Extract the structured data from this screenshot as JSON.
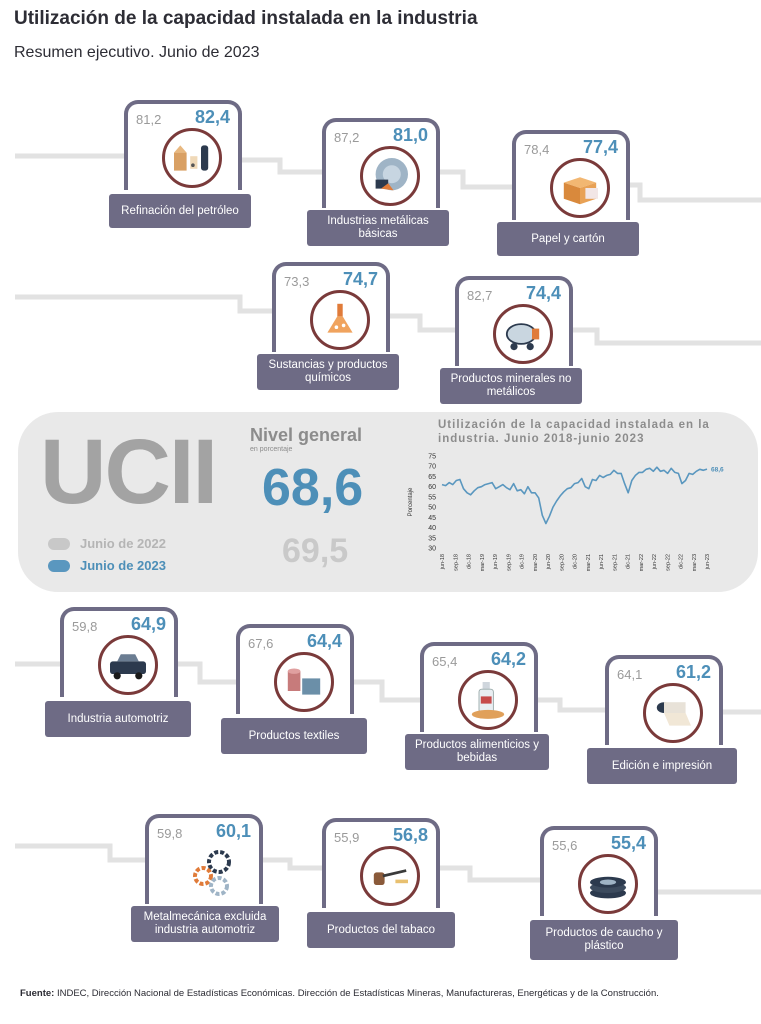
{
  "header": {
    "title": "Utilización de la capacidad instalada en la industria",
    "subtitle": "Resumen ejecutivo. Junio de 2023"
  },
  "colors": {
    "y2022": "#c8c8c8",
    "y2023": "#5a97bf",
    "card_border": "#6e6b85",
    "label_bg": "#6e6b85",
    "circle_border": "#7a3a3a"
  },
  "sectors": [
    {
      "name": "Refinación del petróleo",
      "v2022": "81,2",
      "v2023": "82,4",
      "icon": "refinery-icon"
    },
    {
      "name": "Industrias metálicas básicas",
      "v2022": "87,2",
      "v2023": "81,0",
      "icon": "metal-icon"
    },
    {
      "name": "Papel y cartón",
      "v2022": "78,4",
      "v2023": "77,4",
      "icon": "box-icon"
    },
    {
      "name": "Sustancias y productos químicos",
      "v2022": "73,3",
      "v2023": "74,7",
      "icon": "flask-icon"
    },
    {
      "name": "Productos minerales no metálicos",
      "v2022": "82,7",
      "v2023": "74,4",
      "icon": "cement-mixer-icon"
    },
    {
      "name": "Industria automotriz",
      "v2022": "59,8",
      "v2023": "64,9",
      "icon": "truck-icon"
    },
    {
      "name": "Productos textiles",
      "v2022": "67,6",
      "v2023": "64,4",
      "icon": "textile-icon"
    },
    {
      "name": "Productos alimenticios y bebidas",
      "v2022": "65,4",
      "v2023": "64,2",
      "icon": "food-icon"
    },
    {
      "name": "Edición e impresión",
      "v2022": "64,1",
      "v2023": "61,2",
      "icon": "paper-roll-icon"
    },
    {
      "name": "Metalmecánica excluida industria automotriz",
      "v2022": "59,8",
      "v2023": "60,1",
      "icon": "gears-icon"
    },
    {
      "name": "Productos del tabaco",
      "v2022": "55,9",
      "v2023": "56,8",
      "icon": "pipe-icon"
    },
    {
      "name": "Productos de caucho y plástico",
      "v2022": "55,6",
      "v2023": "55,4",
      "icon": "tire-icon"
    }
  ],
  "summary": {
    "ucii": "UCII",
    "nivel_general_title": "Nivel general",
    "nivel_general_unit": "en porcentaje",
    "value_2023": "68,6",
    "value_2022": "69,5",
    "legend_2022": "Junio de 2022",
    "legend_2023": "Junio de 2023"
  },
  "chart_data": {
    "type": "line",
    "title": "Utilización de la capacidad instalada en la industria. Junio 2018-junio 2023",
    "xlabel": "",
    "ylabel": "Porcentaje",
    "ylim": [
      30,
      75
    ],
    "yticks": [
      30,
      35,
      40,
      45,
      50,
      55,
      60,
      65,
      70,
      75
    ],
    "last_label": "68,6",
    "x_tick_labels": [
      "jun-18",
      "sep-18",
      "dic-18",
      "mar-19",
      "jun-19",
      "sep-19",
      "dic-19",
      "mar-20",
      "jun-20",
      "sep-20",
      "dic-20",
      "mar-21",
      "jun-21",
      "sep-21",
      "dic-21",
      "mar-22",
      "jun-22",
      "sep-22",
      "dic-22",
      "mar-23",
      "jun-23"
    ],
    "series": [
      {
        "values": [
          61.0,
          60.5,
          62.0,
          61.0,
          63.0,
          63.5,
          59.0,
          57.0,
          56.0,
          58.0,
          59.5,
          60.0,
          61.0,
          61.5,
          62.0,
          59.0,
          60.0,
          61.0,
          59.5,
          58.5,
          61.5,
          58.0,
          58.5,
          56.5,
          60.0,
          57.0,
          57.0,
          54.5,
          46.0,
          42.0,
          45.5,
          50.0,
          53.0,
          55.5,
          57.5,
          59.0,
          59.5,
          61.5,
          62.0,
          64.0,
          60.0,
          59.0,
          63.5,
          63.0,
          65.5,
          64.5,
          65.5,
          66.0,
          68.0,
          66.5,
          66.5,
          61.5,
          57.0,
          63.0,
          65.5,
          67.0,
          67.0,
          68.5,
          69.0,
          67.5,
          69.5,
          67.5,
          68.0,
          66.5,
          69.0,
          67.0,
          66.5,
          61.5,
          63.0,
          66.5,
          66.0,
          67.5,
          68.5,
          68.0,
          68.6
        ]
      }
    ]
  },
  "source": {
    "label": "Fuente:",
    "text": "INDEC, Dirección Nacional de Estadísticas Económicas. Dirección de Estadísticas Mineras, Manufactureras, Energéticas y de la Construcción."
  }
}
